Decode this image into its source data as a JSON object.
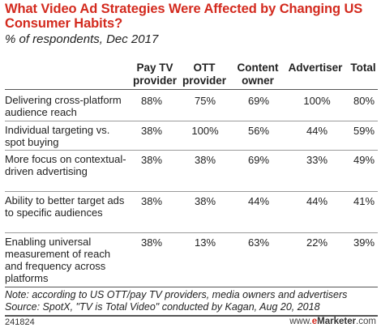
{
  "title": "What Video Ad Strategies Were Affected by Changing US Consumer Habits?",
  "subtitle": "% of respondents, Dec 2017",
  "chart_data": {
    "type": "table",
    "title": "What Video Ad Strategies Were Affected by Changing US Consumer Habits?",
    "subtitle": "% of respondents, Dec 2017",
    "columns": [
      "Pay TV provider",
      "OTT provider",
      "Content owner",
      "Advertiser",
      "Total"
    ],
    "rows": [
      {
        "label": "Delivering cross-platform audience reach",
        "values": [
          "88%",
          "75%",
          "69%",
          "100%",
          "80%"
        ]
      },
      {
        "label": "Individual targeting vs. spot buying",
        "values": [
          "38%",
          "100%",
          "56%",
          "44%",
          "59%"
        ]
      },
      {
        "label": "More focus on contextual-driven advertising",
        "values": [
          "38%",
          "38%",
          "69%",
          "33%",
          "49%"
        ]
      },
      {
        "label": "Ability to better target ads to specific audiences",
        "values": [
          "38%",
          "38%",
          "44%",
          "44%",
          "41%"
        ]
      },
      {
        "label": "Enabling universal measurement of reach and frequency across platforms",
        "values": [
          "38%",
          "13%",
          "63%",
          "22%",
          "39%"
        ]
      }
    ]
  },
  "note": "Note: according to US OTT/pay TV providers, media owners and advertisers",
  "source": "Source: SpotX, \"TV is Total Video\" conducted by Kagan, Aug 20, 2018",
  "footer": {
    "chart_id": "241824",
    "brand_prefix": "www.",
    "brand_e": "e",
    "brand_name": "Marketer",
    "brand_suffix": ".com"
  }
}
